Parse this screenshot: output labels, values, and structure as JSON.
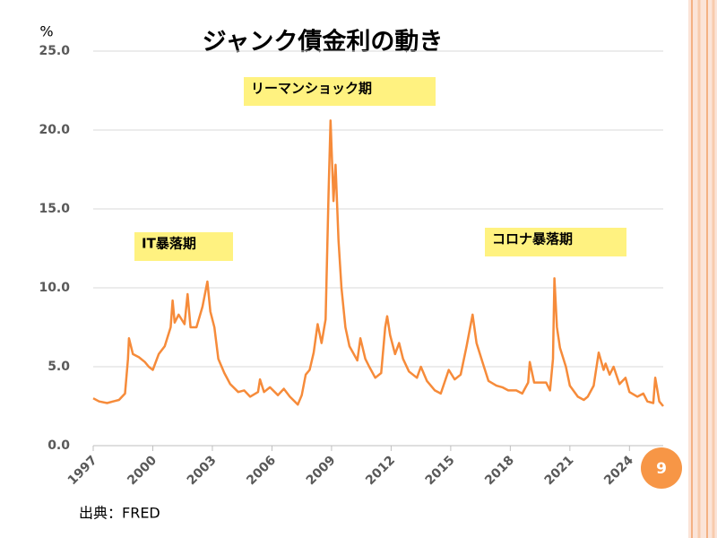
{
  "chart_data": {
    "type": "line",
    "title": "ジャンク債金利の動き",
    "y_label": "%",
    "source": "出典：FRED",
    "color": "#f68b3a",
    "grid": true,
    "xlim": [
      1997,
      2025.7
    ],
    "xticks": [
      1997,
      2000,
      2003,
      2006,
      2009,
      2012,
      2015,
      2018,
      2021,
      2024
    ],
    "ylim": [
      0,
      25
    ],
    "yticks": [
      {
        "value": 0,
        "label": "0.0"
      },
      {
        "value": 5,
        "label": "5.0"
      },
      {
        "value": 10,
        "label": "10.0"
      },
      {
        "value": 15,
        "label": "15.0"
      },
      {
        "value": 20,
        "label": "20.0"
      },
      {
        "value": 25,
        "label": "25.0"
      }
    ],
    "x": [
      1997.0,
      1997.3,
      1997.7,
      1998.0,
      1998.3,
      1998.6,
      1998.75,
      1998.8,
      1999.0,
      1999.3,
      1999.6,
      1999.8,
      2000.0,
      2000.3,
      2000.6,
      2000.9,
      2001.0,
      2001.1,
      2001.3,
      2001.6,
      2001.75,
      2001.9,
      2002.2,
      2002.5,
      2002.75,
      2002.9,
      2003.1,
      2003.3,
      2003.6,
      2003.9,
      2004.3,
      2004.6,
      2004.9,
      2005.3,
      2005.4,
      2005.6,
      2005.9,
      2006.3,
      2006.6,
      2006.9,
      2007.3,
      2007.5,
      2007.7,
      2007.9,
      2008.1,
      2008.3,
      2008.5,
      2008.7,
      2008.85,
      2008.95,
      2009.1,
      2009.2,
      2009.35,
      2009.5,
      2009.7,
      2009.9,
      2010.3,
      2010.45,
      2010.7,
      2010.9,
      2011.2,
      2011.5,
      2011.7,
      2011.8,
      2011.95,
      2012.2,
      2012.4,
      2012.6,
      2012.9,
      2013.3,
      2013.5,
      2013.8,
      2014.2,
      2014.5,
      2014.9,
      2015.2,
      2015.5,
      2015.8,
      2016.1,
      2016.3,
      2016.6,
      2016.9,
      2017.3,
      2017.6,
      2017.9,
      2018.3,
      2018.6,
      2018.9,
      2018.98,
      2019.2,
      2019.5,
      2019.8,
      2020.0,
      2020.15,
      2020.22,
      2020.35,
      2020.5,
      2020.8,
      2021.0,
      2021.4,
      2021.7,
      2021.9,
      2022.2,
      2022.45,
      2022.7,
      2022.8,
      2023.0,
      2023.2,
      2023.5,
      2023.8,
      2024.0,
      2024.4,
      2024.7,
      2024.9,
      2025.2,
      2025.3,
      2025.5,
      2025.7
    ],
    "values": [
      3.0,
      2.8,
      2.7,
      2.8,
      2.9,
      3.3,
      5.5,
      6.8,
      5.8,
      5.6,
      5.3,
      5.0,
      4.8,
      5.8,
      6.3,
      7.5,
      9.2,
      7.8,
      8.3,
      7.7,
      9.6,
      7.5,
      7.5,
      8.8,
      10.4,
      8.5,
      7.5,
      5.5,
      4.6,
      3.9,
      3.4,
      3.5,
      3.1,
      3.4,
      4.2,
      3.4,
      3.7,
      3.2,
      3.6,
      3.1,
      2.6,
      3.2,
      4.5,
      4.8,
      5.9,
      7.7,
      6.5,
      8.0,
      16.0,
      20.6,
      15.5,
      17.8,
      13.0,
      10.0,
      7.5,
      6.3,
      5.4,
      6.8,
      5.5,
      5.0,
      4.3,
      4.6,
      7.5,
      8.2,
      7.0,
      5.8,
      6.5,
      5.5,
      4.7,
      4.3,
      5.0,
      4.1,
      3.5,
      3.3,
      4.8,
      4.2,
      4.5,
      6.3,
      8.3,
      6.5,
      5.3,
      4.1,
      3.8,
      3.7,
      3.5,
      3.5,
      3.3,
      4.0,
      5.3,
      4.0,
      4.0,
      4.0,
      3.5,
      5.5,
      10.6,
      7.5,
      6.2,
      5.0,
      3.8,
      3.1,
      2.9,
      3.1,
      3.8,
      5.9,
      4.8,
      5.2,
      4.5,
      5.0,
      3.9,
      4.3,
      3.4,
      3.1,
      3.3,
      2.8,
      2.7,
      4.3,
      2.8,
      2.5
    ],
    "annotations": [
      "リーマンショック期",
      "IT暴落期",
      "コロナ暴落期"
    ]
  },
  "page_number": "9"
}
